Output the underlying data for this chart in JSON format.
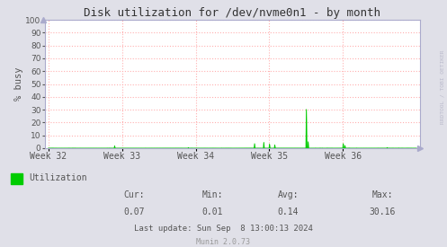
{
  "title": "Disk utilization for /dev/nvme0n1 - by month",
  "ylabel": "% busy",
  "ylim": [
    0,
    100
  ],
  "yticks": [
    0,
    10,
    20,
    30,
    40,
    50,
    60,
    70,
    80,
    90,
    100
  ],
  "week_labels": [
    "Week 32",
    "Week 33",
    "Week 34",
    "Week 35",
    "Week 36"
  ],
  "bg_color": "#e0e0e8",
  "plot_bg_color": "#ffffff",
  "grid_color_x": "#ffb0b0",
  "grid_color_y": "#ffb0b0",
  "line_color": "#00cc00",
  "area_color": "#00cc00",
  "title_color": "#333333",
  "label_color": "#555555",
  "tick_color": "#555555",
  "legend_label": "Utilization",
  "legend_color": "#00cc00",
  "cur_val": "0.07",
  "min_val": "0.01",
  "avg_val": "0.14",
  "max_val": "30.16",
  "last_update": "Last update: Sun Sep  8 13:00:13 2024",
  "munin_version": "Munin 2.0.73",
  "watermark": "RRDTOOL / TOBI OETIKER",
  "arrow_color": "#aaaacc",
  "spine_color": "#aaaacc"
}
